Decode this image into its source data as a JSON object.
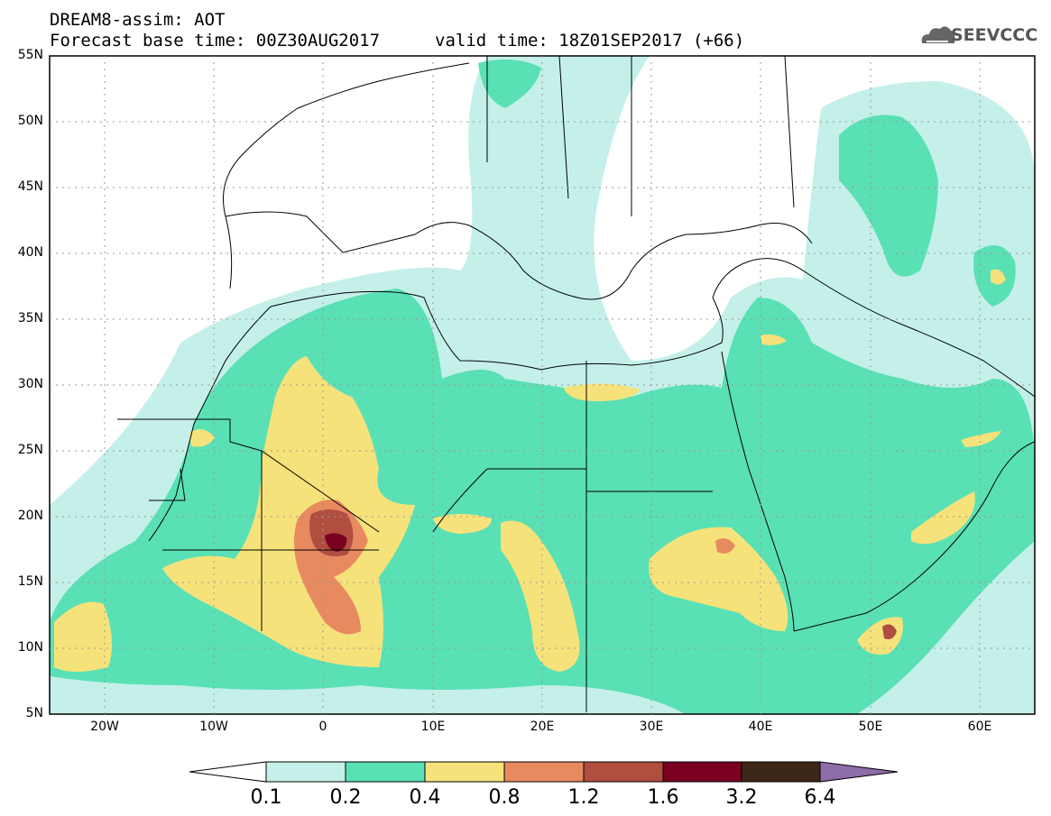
{
  "header": {
    "line1": "DREAM8-assim: AOT",
    "line2": "Forecast base time: 00Z30AUG2017",
    "line3": "valid time: 18Z01SEP2017 (+66)"
  },
  "logo": {
    "text": "SEEVCCC",
    "icon": "cloud-icon"
  },
  "map": {
    "lat_labels": [
      "55N",
      "50N",
      "45N",
      "40N",
      "35N",
      "30N",
      "25N",
      "20N",
      "15N",
      "10N",
      "5N"
    ],
    "lon_labels": [
      "20W",
      "10W",
      "0",
      "10E",
      "20E",
      "30E",
      "40E",
      "50E",
      "60E"
    ]
  },
  "colorbar": {
    "labels": [
      "0.1",
      "0.2",
      "0.4",
      "0.8",
      "1.2",
      "1.6",
      "3.2",
      "6.4"
    ],
    "colors": [
      "#c4f0e9",
      "#5ae0b5",
      "#f6e27a",
      "#e88a60",
      "#b04e40",
      "#7a0022",
      "#3d2718",
      "#8e6ca8"
    ]
  }
}
